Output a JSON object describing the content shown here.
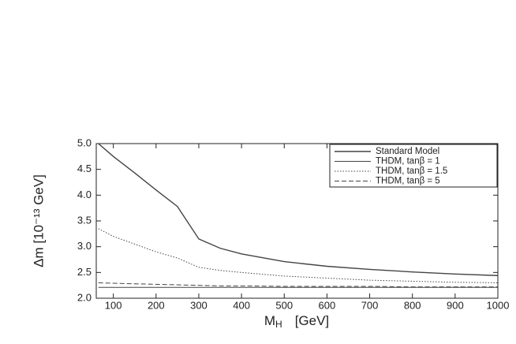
{
  "chart_data": {
    "type": "line",
    "x_label": {
      "main": "M",
      "sub": "H",
      "unit": "[GeV]"
    },
    "y_label": "Δm  [10⁻¹³ GeV]",
    "x": [
      65,
      100,
      150,
      200,
      250,
      300,
      350,
      400,
      500,
      600,
      700,
      800,
      900,
      1000
    ],
    "series": [
      {
        "name": "Standard Model",
        "color": "#444444",
        "dash": "none",
        "width": 1.4,
        "values": [
          5.0,
          4.75,
          4.43,
          4.1,
          3.78,
          3.15,
          2.97,
          2.86,
          2.71,
          2.62,
          2.56,
          2.51,
          2.47,
          2.44
        ]
      },
      {
        "name": "THDM, tanβ = 1",
        "color": "#444444",
        "dash": "none",
        "width": 1,
        "values": [
          2.21,
          2.21,
          2.21,
          2.21,
          2.21,
          2.21,
          2.21,
          2.21,
          2.21,
          2.21,
          2.21,
          2.21,
          2.21,
          2.21
        ]
      },
      {
        "name": "THDM, tanβ = 1.5",
        "color": "#444444",
        "dash": "1.5,2",
        "width": 1,
        "values": [
          3.35,
          3.2,
          3.05,
          2.9,
          2.78,
          2.6,
          2.54,
          2.5,
          2.43,
          2.39,
          2.35,
          2.33,
          2.31,
          2.3
        ]
      },
      {
        "name": "THDM, tanβ = 5",
        "color": "#444444",
        "dash": "6,3",
        "width": 1,
        "values": [
          2.3,
          2.29,
          2.28,
          2.27,
          2.26,
          2.25,
          2.24,
          2.24,
          2.23,
          2.23,
          2.23,
          2.22,
          2.22,
          2.22
        ]
      }
    ],
    "xlim": [
      60,
      1000
    ],
    "ylim": [
      2.0,
      5.0
    ],
    "xticks": [
      100,
      200,
      300,
      400,
      500,
      600,
      700,
      800,
      900,
      1000
    ],
    "yticks": [
      {
        "value": 2.0,
        "label": "2.0"
      },
      2.5,
      {
        "value": 3.0,
        "label": "3.0"
      },
      3.5,
      {
        "value": 4.0,
        "label": "4.0"
      },
      4.5,
      {
        "value": 5.0,
        "label": "5.0"
      }
    ],
    "legend": "upper right"
  }
}
